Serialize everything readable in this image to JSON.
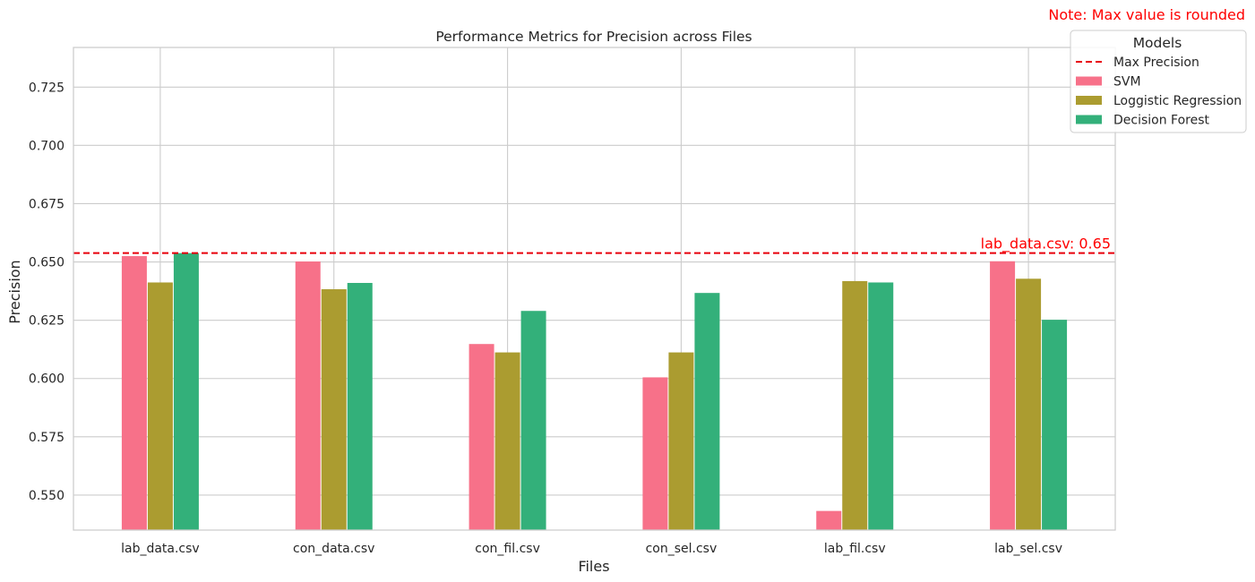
{
  "chart_data": {
    "type": "bar",
    "title": "Performance Metrics for Precision across Files",
    "xlabel": "Files",
    "ylabel": "Precision",
    "categories": [
      "lab_data.csv",
      "con_data.csv",
      "con_fil.csv",
      "con_sel.csv",
      "lab_fil.csv",
      "lab_sel.csv"
    ],
    "series": [
      {
        "name": "SVM",
        "color": "#f77189",
        "values": [
          0.6525,
          0.6502,
          0.6148,
          0.6005,
          0.5432,
          0.6503
        ]
      },
      {
        "name": "Loggistic Regression",
        "color": "#ab9c30",
        "values": [
          0.6412,
          0.6383,
          0.6112,
          0.6112,
          0.6418,
          0.6428
        ]
      },
      {
        "name": "Decision Forest",
        "color": "#33b07a",
        "values": [
          0.6538,
          0.641,
          0.629,
          0.6367,
          0.6412,
          0.6252
        ]
      }
    ],
    "ylim": [
      0.535,
      0.742
    ],
    "yticks": [
      "0.550",
      "0.575",
      "0.600",
      "0.625",
      "0.650",
      "0.675",
      "0.700",
      "0.725"
    ],
    "grid": true,
    "max_line": {
      "label": "Max Precision",
      "value": 0.6538,
      "color": "#e8000b",
      "annotation": "lab_data.csv: 0.65"
    },
    "legend": {
      "title": "Models",
      "placement": "top-right"
    },
    "note": "Note: Max value is rounded"
  }
}
